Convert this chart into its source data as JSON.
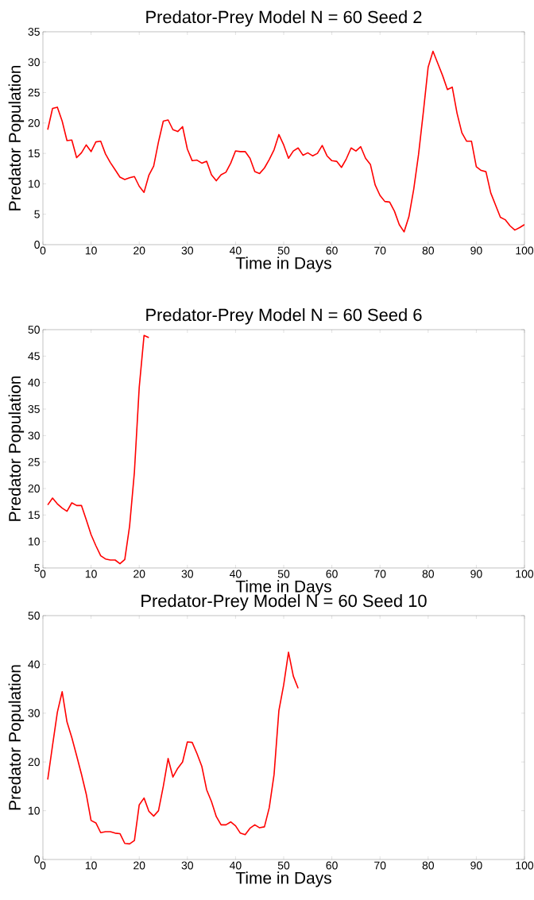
{
  "chart_data": [
    {
      "type": "line",
      "title": "Predator-Prey Model N = 60 Seed 2",
      "xlabel": "Time in Days",
      "ylabel": "Predator Population",
      "x": [
        1,
        2,
        3,
        4,
        5,
        6,
        7,
        8,
        9,
        10,
        11,
        12,
        13,
        14,
        15,
        16,
        17,
        18,
        19,
        20,
        21,
        22,
        23,
        24,
        25,
        26,
        27,
        28,
        29,
        30,
        31,
        32,
        33,
        34,
        35,
        36,
        37,
        38,
        39,
        40,
        41,
        42,
        43,
        44,
        45,
        46,
        47,
        48,
        49,
        50,
        51,
        52,
        53,
        54,
        55,
        56,
        57,
        58,
        59,
        60,
        61,
        62,
        63,
        64,
        65,
        66,
        67,
        68,
        69,
        70,
        71,
        72,
        73,
        74,
        75,
        76,
        77,
        78,
        79,
        80,
        81,
        82,
        83,
        84,
        85,
        86,
        87,
        88,
        89,
        90,
        91,
        92,
        93,
        94,
        95,
        96,
        97,
        98,
        99,
        100
      ],
      "series": [
        {
          "color": "#ff0000",
          "values": [
            18.9,
            22.4,
            22.6,
            20.3,
            17.1,
            17.2,
            14.3,
            15.1,
            16.4,
            15.3,
            16.9,
            17.0,
            14.9,
            13.5,
            12.3,
            11.1,
            10.7,
            11.0,
            11.2,
            9.6,
            8.6,
            11.4,
            12.9,
            16.9,
            20.3,
            20.5,
            18.9,
            18.6,
            19.4,
            15.7,
            13.8,
            13.9,
            13.4,
            13.7,
            11.5,
            10.5,
            11.5,
            11.9,
            13.4,
            15.4,
            15.3,
            15.3,
            14.2,
            12.0,
            11.7,
            12.6,
            14.0,
            15.6,
            18.1,
            16.4,
            14.2,
            15.4,
            15.9,
            14.7,
            15.1,
            14.6,
            15.0,
            16.3,
            14.6,
            13.8,
            13.7,
            12.7,
            14.1,
            15.9,
            15.4,
            16.1,
            14.2,
            13.2,
            9.8,
            8.1,
            7.1,
            7.0,
            5.5,
            3.3,
            2.1,
            4.6,
            9.1,
            14.8,
            21.8,
            29.2,
            31.8,
            29.8,
            27.8,
            25.5,
            25.9,
            21.6,
            18.4,
            17.0,
            17.0,
            12.8,
            12.2,
            12.0,
            8.5,
            6.5,
            4.5,
            4.1,
            3.1,
            2.4,
            2.8,
            3.3
          ]
        }
      ],
      "xlim": [
        0,
        100
      ],
      "ylim": [
        0,
        35
      ],
      "xticks": [
        0,
        10,
        20,
        30,
        40,
        50,
        60,
        70,
        80,
        90,
        100
      ],
      "yticks": [
        0,
        5,
        10,
        15,
        20,
        25,
        30,
        35
      ]
    },
    {
      "type": "line",
      "title": "Predator-Prey Model N = 60 Seed 6",
      "xlabel": "Time in Days",
      "ylabel": "Predator Population",
      "x": [
        1,
        2,
        3,
        4,
        5,
        6,
        7,
        8,
        9,
        10,
        11,
        12,
        13,
        14,
        15,
        16,
        17,
        18,
        19,
        20,
        21,
        22
      ],
      "series": [
        {
          "color": "#ff0000",
          "values": [
            16.9,
            18.2,
            17.1,
            16.3,
            15.7,
            17.3,
            16.8,
            16.8,
            14.1,
            11.3,
            9.2,
            7.3,
            6.7,
            6.5,
            6.5,
            5.8,
            6.6,
            12.9,
            23.1,
            39.1,
            48.9,
            48.5
          ]
        }
      ],
      "xlim": [
        0,
        100
      ],
      "ylim": [
        5,
        50
      ],
      "xticks": [
        0,
        10,
        20,
        30,
        40,
        50,
        60,
        70,
        80,
        90,
        100
      ],
      "yticks": [
        5,
        10,
        15,
        20,
        25,
        30,
        35,
        40,
        45,
        50
      ]
    },
    {
      "type": "line",
      "title": "Predator-Prey Model N = 60 Seed 10",
      "xlabel": "Time in Days",
      "ylabel": "Predator Population",
      "x": [
        1,
        2,
        3,
        4,
        5,
        6,
        7,
        8,
        9,
        10,
        11,
        12,
        13,
        14,
        15,
        16,
        17,
        18,
        19,
        20,
        21,
        22,
        23,
        24,
        25,
        26,
        27,
        28,
        29,
        30,
        31,
        32,
        33,
        34,
        35,
        36,
        37,
        38,
        39,
        40,
        41,
        42,
        43,
        44,
        45,
        46,
        47,
        48,
        49,
        50,
        51,
        52,
        53
      ],
      "series": [
        {
          "color": "#ff0000",
          "values": [
            16.4,
            23.4,
            30.2,
            34.4,
            28.2,
            25.0,
            21.3,
            17.5,
            13.4,
            8.0,
            7.5,
            5.5,
            5.7,
            5.7,
            5.4,
            5.3,
            3.3,
            3.2,
            3.9,
            11.2,
            12.6,
            9.9,
            8.9,
            10.0,
            15.0,
            20.7,
            16.9,
            18.7,
            20.0,
            24.1,
            24.0,
            21.7,
            19.1,
            14.3,
            11.9,
            8.8,
            7.1,
            7.1,
            7.7,
            6.9,
            5.4,
            5.1,
            6.4,
            7.1,
            6.5,
            6.7,
            10.6,
            17.4,
            30.5,
            35.8,
            42.5,
            37.6,
            35.1
          ]
        }
      ],
      "xlim": [
        0,
        100
      ],
      "ylim": [
        0,
        50
      ],
      "xticks": [
        0,
        10,
        20,
        30,
        40,
        50,
        60,
        70,
        80,
        90,
        100
      ],
      "yticks": [
        0,
        10,
        20,
        30,
        40,
        50
      ]
    }
  ]
}
